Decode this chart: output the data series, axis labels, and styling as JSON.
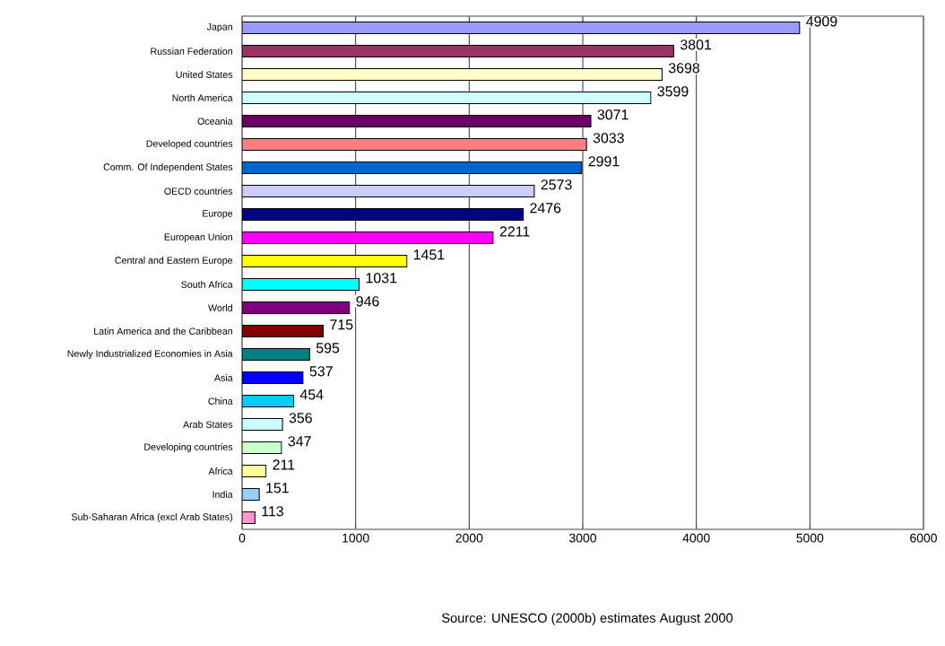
{
  "chart_data": {
    "type": "bar",
    "orientation": "horizontal",
    "categories": [
      "Japan",
      "Russian Federation",
      "United States",
      "North America",
      "Oceania",
      "Developed countries",
      "Comm. Of Independent States",
      "OECD countries",
      "Europe",
      "European Union",
      "Central and Eastern Europe",
      "South Africa",
      "World",
      "Latin America and the Caribbean",
      "Newly Industrialized Economies in Asia",
      "Asia",
      "China",
      "Arab States",
      "Developing countries",
      "Africa",
      "India",
      "Sub-Saharan Africa (excl Arab States)"
    ],
    "values": [
      4909,
      3801,
      3698,
      3599,
      3071,
      3033,
      2991,
      2573,
      2476,
      2211,
      1451,
      1031,
      946,
      715,
      595,
      537,
      454,
      356,
      347,
      211,
      151,
      113
    ],
    "colors": [
      "#9999ff",
      "#993366",
      "#ffffcc",
      "#ccffff",
      "#660066",
      "#ff8080",
      "#0066cc",
      "#ccccff",
      "#000080",
      "#ff00ff",
      "#ffff00",
      "#00ffff",
      "#800080",
      "#800000",
      "#008080",
      "#0000ff",
      "#00ccff",
      "#ccffff",
      "#ccffcc",
      "#ffff99",
      "#99ccff",
      "#ff99cc"
    ],
    "xlim": [
      0,
      6000
    ],
    "xticks": [
      0,
      1000,
      2000,
      3000,
      4000,
      5000,
      6000
    ],
    "grid": "x",
    "data_labels": true,
    "annotations": [
      "Source: UNESCO (2000b) estimates August 2000"
    ]
  }
}
